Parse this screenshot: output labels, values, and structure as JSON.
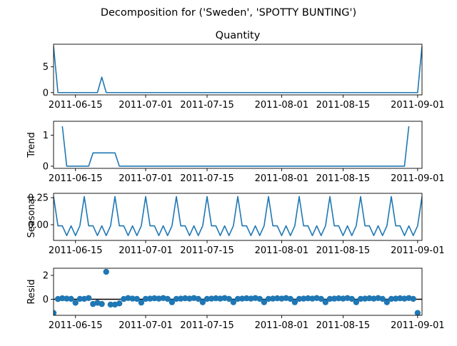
{
  "figure": {
    "title": "Decomposition for ('Sweden', 'SPOTTY BUNTING')"
  },
  "chart_data": {
    "type": "line",
    "title": "Decomposition for ('Sweden', 'SPOTTY BUNTING')",
    "x_ticks": [
      "2011-06-15",
      "2011-07-01",
      "2011-07-15",
      "2011-08-01",
      "2011-08-15",
      "2011-09-01"
    ],
    "x_range": [
      "2011-06-10",
      "2011-09-02"
    ],
    "line_color": "#1f77b4",
    "panels": [
      {
        "key": "observed",
        "type": "line",
        "title": "Quantity",
        "ylabel": "",
        "ylim": [
          -0.45,
          9.4
        ],
        "yticks": [
          0,
          5
        ],
        "x": [
          "2011-06-10",
          "2011-06-11",
          "2011-06-19",
          "2011-06-20",
          "2011-06-21",
          "2011-06-22",
          "2011-09-01",
          "2011-09-02"
        ],
        "values": [
          9,
          0,
          0,
          0,
          3,
          0,
          0,
          9
        ]
      },
      {
        "key": "trend",
        "type": "line",
        "title": "",
        "ylabel": "Trend",
        "ylim": [
          -0.07,
          1.45
        ],
        "yticks": [
          0,
          1
        ],
        "x": [
          "2011-06-12",
          "2011-06-13",
          "2011-06-18",
          "2011-06-19",
          "2011-06-24",
          "2011-06-25",
          "2011-08-29",
          "2011-08-30"
        ],
        "values": [
          1.29,
          0,
          0,
          0.43,
          0.43,
          0,
          0,
          1.29
        ]
      },
      {
        "key": "seasonal",
        "type": "line",
        "title": "",
        "ylabel": "Seasonal",
        "ylim": [
          -0.145,
          0.29
        ],
        "yticks": [
          0.25,
          0.0
        ],
        "ytick_labels": [
          "0.25",
          "0.00"
        ],
        "period_start": "2011-06-10",
        "period_end": "2011-09-02",
        "pattern": [
          0.26,
          -0.01,
          -0.01,
          -0.1,
          -0.01,
          -0.1,
          -0.01
        ]
      },
      {
        "key": "resid",
        "type": "scatter",
        "title": "",
        "ylabel": "Resid",
        "ylim": [
          -1.35,
          2.6
        ],
        "yticks": [
          0,
          2
        ],
        "baseline": 0,
        "x_start": "2011-06-10",
        "values": [
          -1.15,
          0.02,
          0.08,
          0.05,
          0.03,
          -0.3,
          0.03,
          0.03,
          0.1,
          -0.4,
          -0.3,
          -0.4,
          2.3,
          -0.45,
          -0.45,
          -0.35,
          0.02,
          0.1,
          0.05,
          0.03,
          -0.28,
          0.03,
          0.05,
          0.08,
          0.05,
          0.1,
          0.03,
          -0.25,
          0.03,
          0.05,
          0.08,
          0.05,
          0.1,
          0.03,
          -0.25,
          0.03,
          0.05,
          0.08,
          0.05,
          0.1,
          0.03,
          -0.25,
          0.03,
          0.05,
          0.08,
          0.05,
          0.1,
          0.03,
          -0.25,
          0.03,
          0.05,
          0.08,
          0.05,
          0.1,
          0.03,
          -0.25,
          0.03,
          0.05,
          0.08,
          0.05,
          0.1,
          0.03,
          -0.25,
          0.03,
          0.05,
          0.08,
          0.05,
          0.1,
          0.03,
          -0.25,
          0.03,
          0.05,
          0.08,
          0.05,
          0.1,
          0.03,
          -0.25,
          0.03,
          0.05,
          0.08,
          0.05,
          0.1,
          0.03,
          -1.15
        ]
      }
    ]
  }
}
